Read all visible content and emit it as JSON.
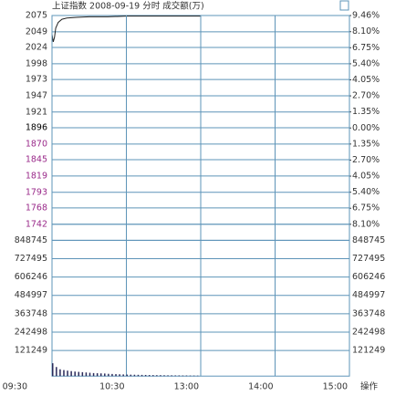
{
  "chart_data": [
    {
      "type": "line",
      "title": "上证指数  2008-09-19 分时 成交额(万)",
      "x": [
        0,
        1,
        2,
        3,
        5,
        8,
        12,
        20,
        30,
        45,
        60,
        75,
        90,
        105,
        120
      ],
      "series": [
        {
          "color": "#222222",
          "values": [
            2045,
            2033,
            2040,
            2055,
            2064,
            2069,
            2071,
            2072,
            2073,
            2073,
            2074,
            2074,
            2074,
            2074,
            2074
          ]
        }
      ],
      "xlim": [
        0,
        240
      ],
      "ylim": [
        1742,
        2075
      ],
      "yticks": [
        2075,
        2049,
        2024,
        1998,
        1973,
        1947,
        1921,
        1896,
        1870,
        1845,
        1819,
        1793,
        1768,
        1742
      ],
      "y2lim": [
        -8.1,
        9.46
      ],
      "y2ticks": [
        {
          "value": 9.46,
          "label": "9.46%"
        },
        {
          "value": 8.1,
          "label": "8.10%"
        },
        {
          "value": 6.75,
          "label": "6.75%"
        },
        {
          "value": 5.4,
          "label": "5.40%"
        },
        {
          "value": 4.05,
          "label": "4.05%"
        },
        {
          "value": 2.7,
          "label": "2.70%"
        },
        {
          "value": 1.35,
          "label": "1.35%"
        },
        {
          "value": 0,
          "label": "0.00%"
        },
        {
          "value": -1.35,
          "label": "1.35%"
        },
        {
          "value": -2.7,
          "label": "2.70%"
        },
        {
          "value": -4.05,
          "label": "4.05%"
        },
        {
          "value": -5.4,
          "label": "5.40%"
        },
        {
          "value": -6.75,
          "label": "6.75%"
        },
        {
          "value": -8.1,
          "label": "8.10%"
        }
      ],
      "grid": true
    },
    {
      "type": "bar",
      "color": "#2a2a5a",
      "x": [
        0,
        3,
        6,
        9,
        12,
        15,
        18,
        21,
        24,
        27,
        30,
        33,
        36,
        39,
        42,
        45,
        48,
        51,
        54,
        57,
        60,
        63,
        66,
        69,
        72,
        75,
        78,
        81,
        84,
        87,
        90,
        93,
        96,
        99,
        102,
        105,
        108,
        111,
        114,
        117
      ],
      "values": [
        85000,
        60000,
        45000,
        40000,
        36000,
        33000,
        30000,
        28000,
        26000,
        24000,
        22000,
        20000,
        19000,
        18000,
        17000,
        15000,
        14000,
        13000,
        12000,
        11000,
        10000,
        9500,
        9000,
        8500,
        8000,
        7500,
        7000,
        6500,
        6000,
        6000,
        5500,
        5000,
        5000,
        4500,
        4500,
        4000,
        4000,
        3500,
        3500,
        3000
      ],
      "xlim": [
        0,
        240
      ],
      "ylim": [
        0,
        848745
      ],
      "yticks": [
        848745,
        727495,
        606246,
        484997,
        363748,
        242498,
        121249
      ],
      "xticks": [
        {
          "value": 0,
          "label": "09:30"
        },
        {
          "value": 60,
          "label": "10:30"
        },
        {
          "value": 120,
          "label": "13:00"
        },
        {
          "value": 180,
          "label": "14:00"
        },
        {
          "value": 240,
          "label": "15:00"
        }
      ],
      "grid": true
    }
  ],
  "toolbar": {
    "button": "操作"
  }
}
